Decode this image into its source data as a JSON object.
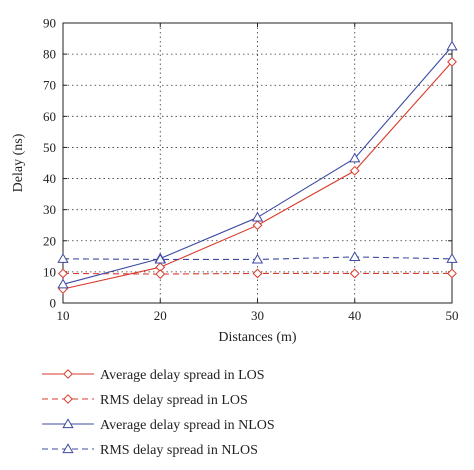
{
  "chart_data": {
    "type": "line",
    "xlabel": "Distances (m)",
    "ylabel": "Delay (ns)",
    "xlim": [
      10,
      50
    ],
    "ylim": [
      0,
      90
    ],
    "xticks": [
      10,
      20,
      30,
      40,
      50
    ],
    "yticks": [
      0,
      10,
      20,
      30,
      40,
      50,
      60,
      70,
      80,
      90
    ],
    "grid": true,
    "legend_position": "below",
    "x": [
      10,
      20,
      30,
      40,
      50
    ],
    "series": [
      {
        "name": "Average delay spread in LOS",
        "values": [
          4.5,
          11.5,
          25,
          42.5,
          77.5
        ],
        "color": "#d93a2b",
        "marker": "diamond",
        "line": "solid"
      },
      {
        "name": "RMS delay spread in LOS",
        "values": [
          9.5,
          9.3,
          9.5,
          9.5,
          9.5
        ],
        "color": "#d93a2b",
        "marker": "diamond",
        "line": "dashed"
      },
      {
        "name": "Average delay spread in NLOS",
        "values": [
          6,
          14.3,
          27.5,
          46.5,
          82.5
        ],
        "color": "#3b4aa0",
        "marker": "triangle",
        "line": "solid"
      },
      {
        "name": "RMS delay spread in NLOS",
        "values": [
          14.2,
          14,
          14,
          14.8,
          14.2
        ],
        "color": "#3b4aa0",
        "marker": "triangle",
        "line": "dashed"
      }
    ]
  }
}
